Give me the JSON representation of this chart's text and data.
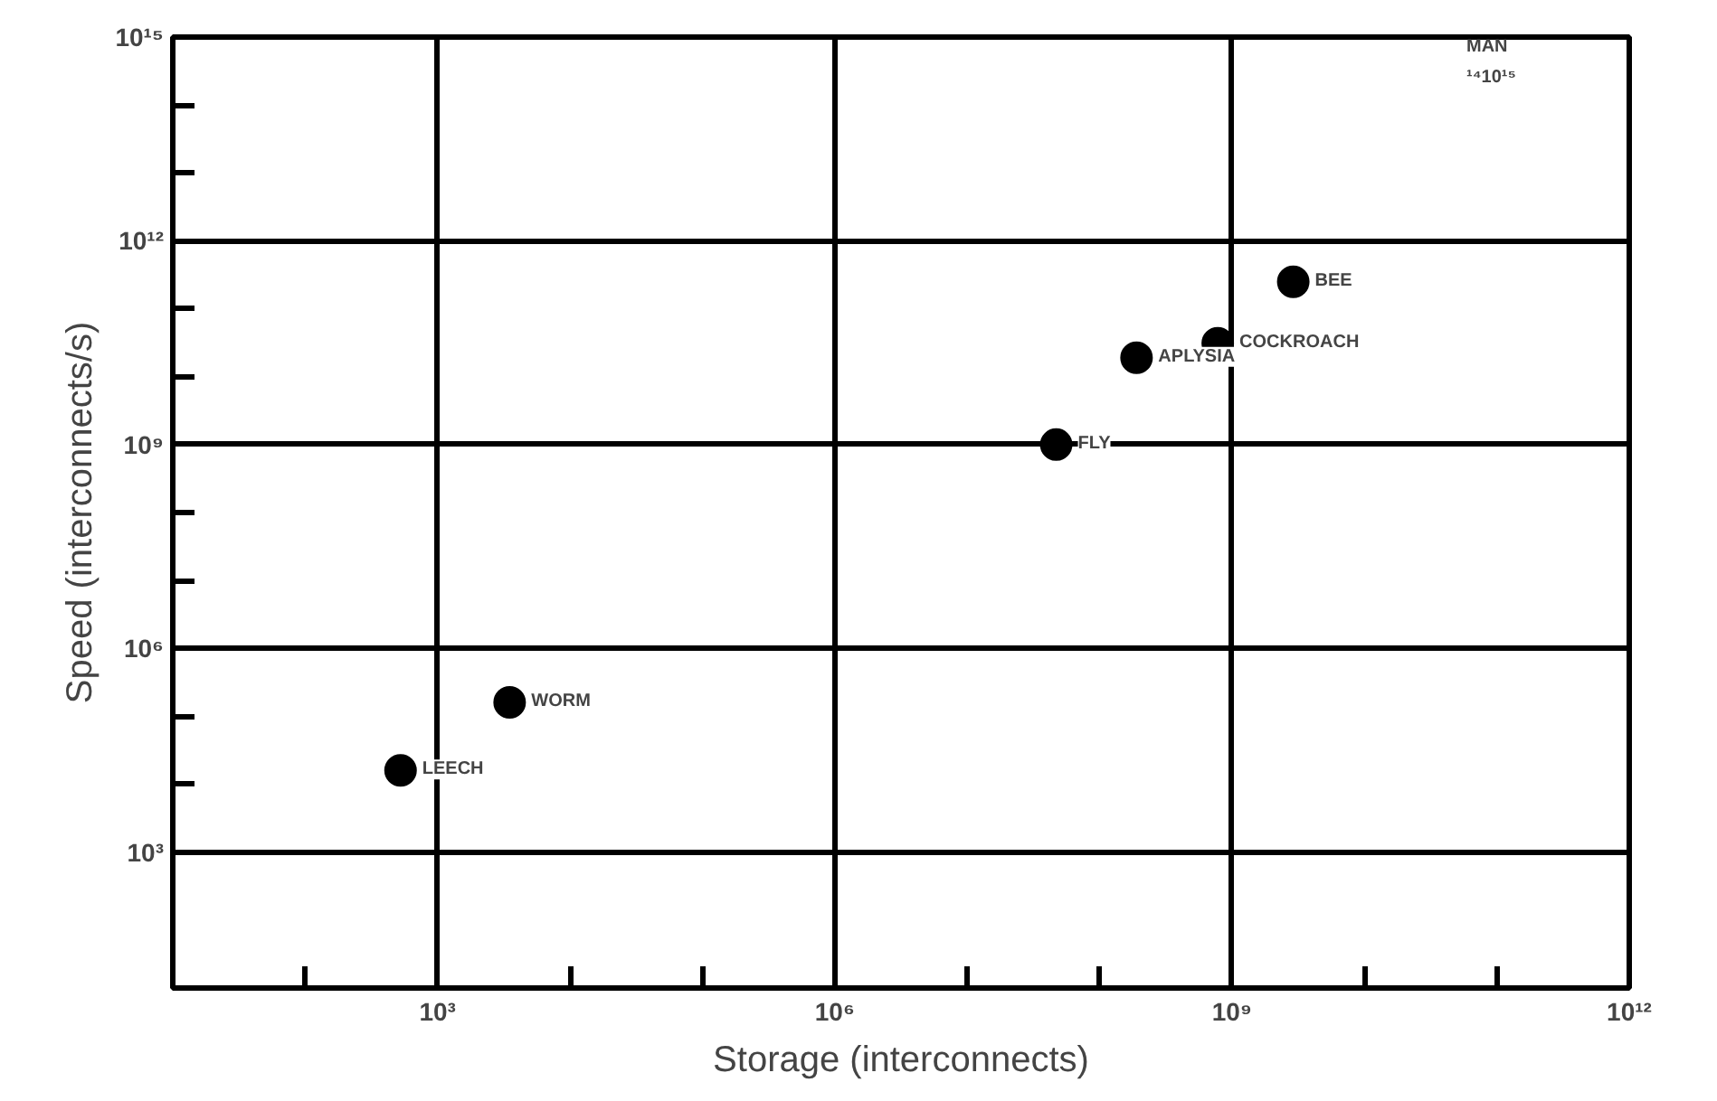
{
  "chart_data": {
    "type": "scatter",
    "xlabel": "Storage (interconnects)",
    "ylabel": "Speed (interconnects/s)",
    "log": "xy",
    "grid": true,
    "marker": "circle",
    "xlim": [
      10,
      1000000000000
    ],
    "ylim": [
      10,
      1000000000000000
    ],
    "xticks": [
      {
        "value": 100,
        "label": null
      },
      {
        "value": 1000,
        "label": "10³"
      },
      {
        "value": 10000,
        "label": null
      },
      {
        "value": 100000,
        "label": null
      },
      {
        "value": 1000000,
        "label": "10⁶"
      },
      {
        "value": 10000000,
        "label": null
      },
      {
        "value": 100000000,
        "label": null
      },
      {
        "value": 1000000000,
        "label": "10⁹"
      },
      {
        "value": 10000000000,
        "label": null
      },
      {
        "value": 100000000000,
        "label": null
      },
      {
        "value": 1000000000000,
        "label": "10¹²"
      }
    ],
    "yticks": [
      {
        "value": 1000,
        "label": "10³"
      },
      {
        "value": 10000,
        "label": null
      },
      {
        "value": 100000,
        "label": null
      },
      {
        "value": 1000000,
        "label": "10⁶"
      },
      {
        "value": 10000000,
        "label": null
      },
      {
        "value": 100000000,
        "label": null
      },
      {
        "value": 1000000000,
        "label": "10⁹"
      },
      {
        "value": 10000000000,
        "label": null
      },
      {
        "value": 100000000000,
        "label": null
      },
      {
        "value": 1000000000000,
        "label": "10¹²"
      },
      {
        "value": 10000000000000,
        "label": null
      },
      {
        "value": 100000000000000,
        "label": null
      },
      {
        "value": 1000000000000000,
        "label": "10¹⁵"
      }
    ],
    "series": [
      {
        "color": "#000000",
        "x": [
          525,
          3500,
          47000000,
          190000000,
          780000000,
          2900000000
        ],
        "values": [
          16000,
          160000,
          1000000000,
          19000000000,
          31000000000,
          250000000000
        ]
      }
    ],
    "annotations": [
      {
        "text": "LEECH",
        "x": 525,
        "y": 16000
      },
      {
        "text": "WORM",
        "x": 3500,
        "y": 160000
      },
      {
        "text": "FLY",
        "x": 47000000,
        "y": 1000000000
      },
      {
        "text": "APLYSIA",
        "x": 190000000,
        "y": 19000000000
      },
      {
        "text": "COCKROACH",
        "x": 780000000,
        "y": 31000000000
      },
      {
        "text": "BEE",
        "x": 2900000000,
        "y": 250000000000
      },
      "MAN",
      "¹⁴10¹⁵"
    ]
  }
}
